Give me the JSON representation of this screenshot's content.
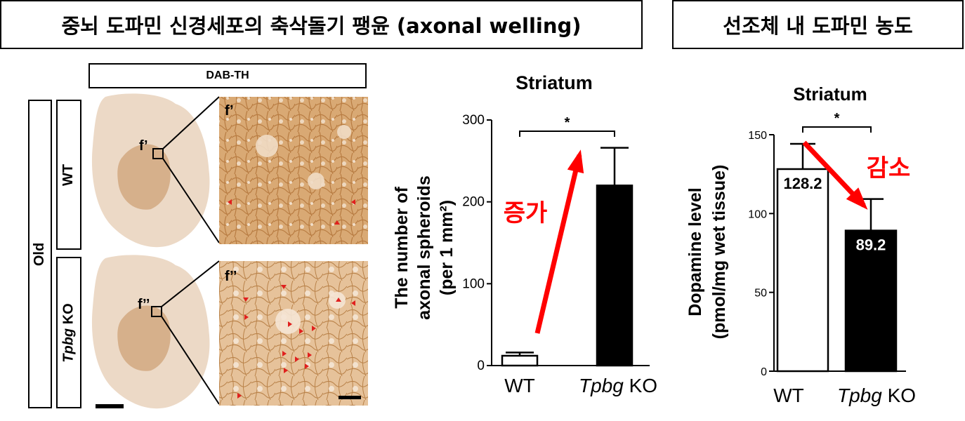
{
  "headers": {
    "left": "중뇌 도파민 신경세포의 축삭돌기 팽윤 (axonal welling)",
    "right": "선조체 내 도파민 농도"
  },
  "micrograph": {
    "stain_label": "DAB-TH",
    "age_label": "Old",
    "row1_label": "WT",
    "row2_label_italic": "Tpbg",
    "row2_label_rest": " KO",
    "inset1_label": "f’",
    "inset2_label": "f’’",
    "brain1_label": "f’",
    "brain2_label": "f’’",
    "colors": {
      "tissue": "#e8d2bd",
      "tissue_dark": "#d8b696",
      "stain": "#c9955e",
      "arrowhead": "#e0201e"
    }
  },
  "chart_data": [
    {
      "type": "bar",
      "title": "Striatum",
      "ylabel_line1": "The number of",
      "ylabel_line2": "axonal spheroids",
      "ylabel_line3": "(per 1 mm²)",
      "categories": [
        "WT",
        "Tpbg KO"
      ],
      "category_italic": [
        "",
        "Tpbg"
      ],
      "category_rest": [
        "WT",
        " KO"
      ],
      "values": [
        12,
        220
      ],
      "errors": [
        4,
        46
      ],
      "bar_fill": [
        "#ffffff",
        "#000000"
      ],
      "ylim": [
        0,
        300
      ],
      "yticks": [
        0,
        100,
        200,
        300
      ],
      "significance": "*",
      "annotation": "증가",
      "annotation_color": "#ff0000"
    },
    {
      "type": "bar",
      "title": "Striatum",
      "ylabel_line1": "Dopamine level",
      "ylabel_line2": "(pmol/mg wet tissue)",
      "categories": [
        "WT",
        "Tpbg KO"
      ],
      "category_italic": [
        "",
        "Tpbg"
      ],
      "category_rest": [
        "WT",
        " KO"
      ],
      "values": [
        128.2,
        89.2
      ],
      "value_labels": [
        "128.2",
        "89.2"
      ],
      "errors": [
        16,
        20
      ],
      "bar_fill": [
        "#ffffff",
        "#000000"
      ],
      "ylim": [
        0,
        150
      ],
      "yticks": [
        0,
        50,
        100,
        150
      ],
      "significance": "*",
      "annotation": "감소",
      "annotation_color": "#ff0000"
    }
  ]
}
